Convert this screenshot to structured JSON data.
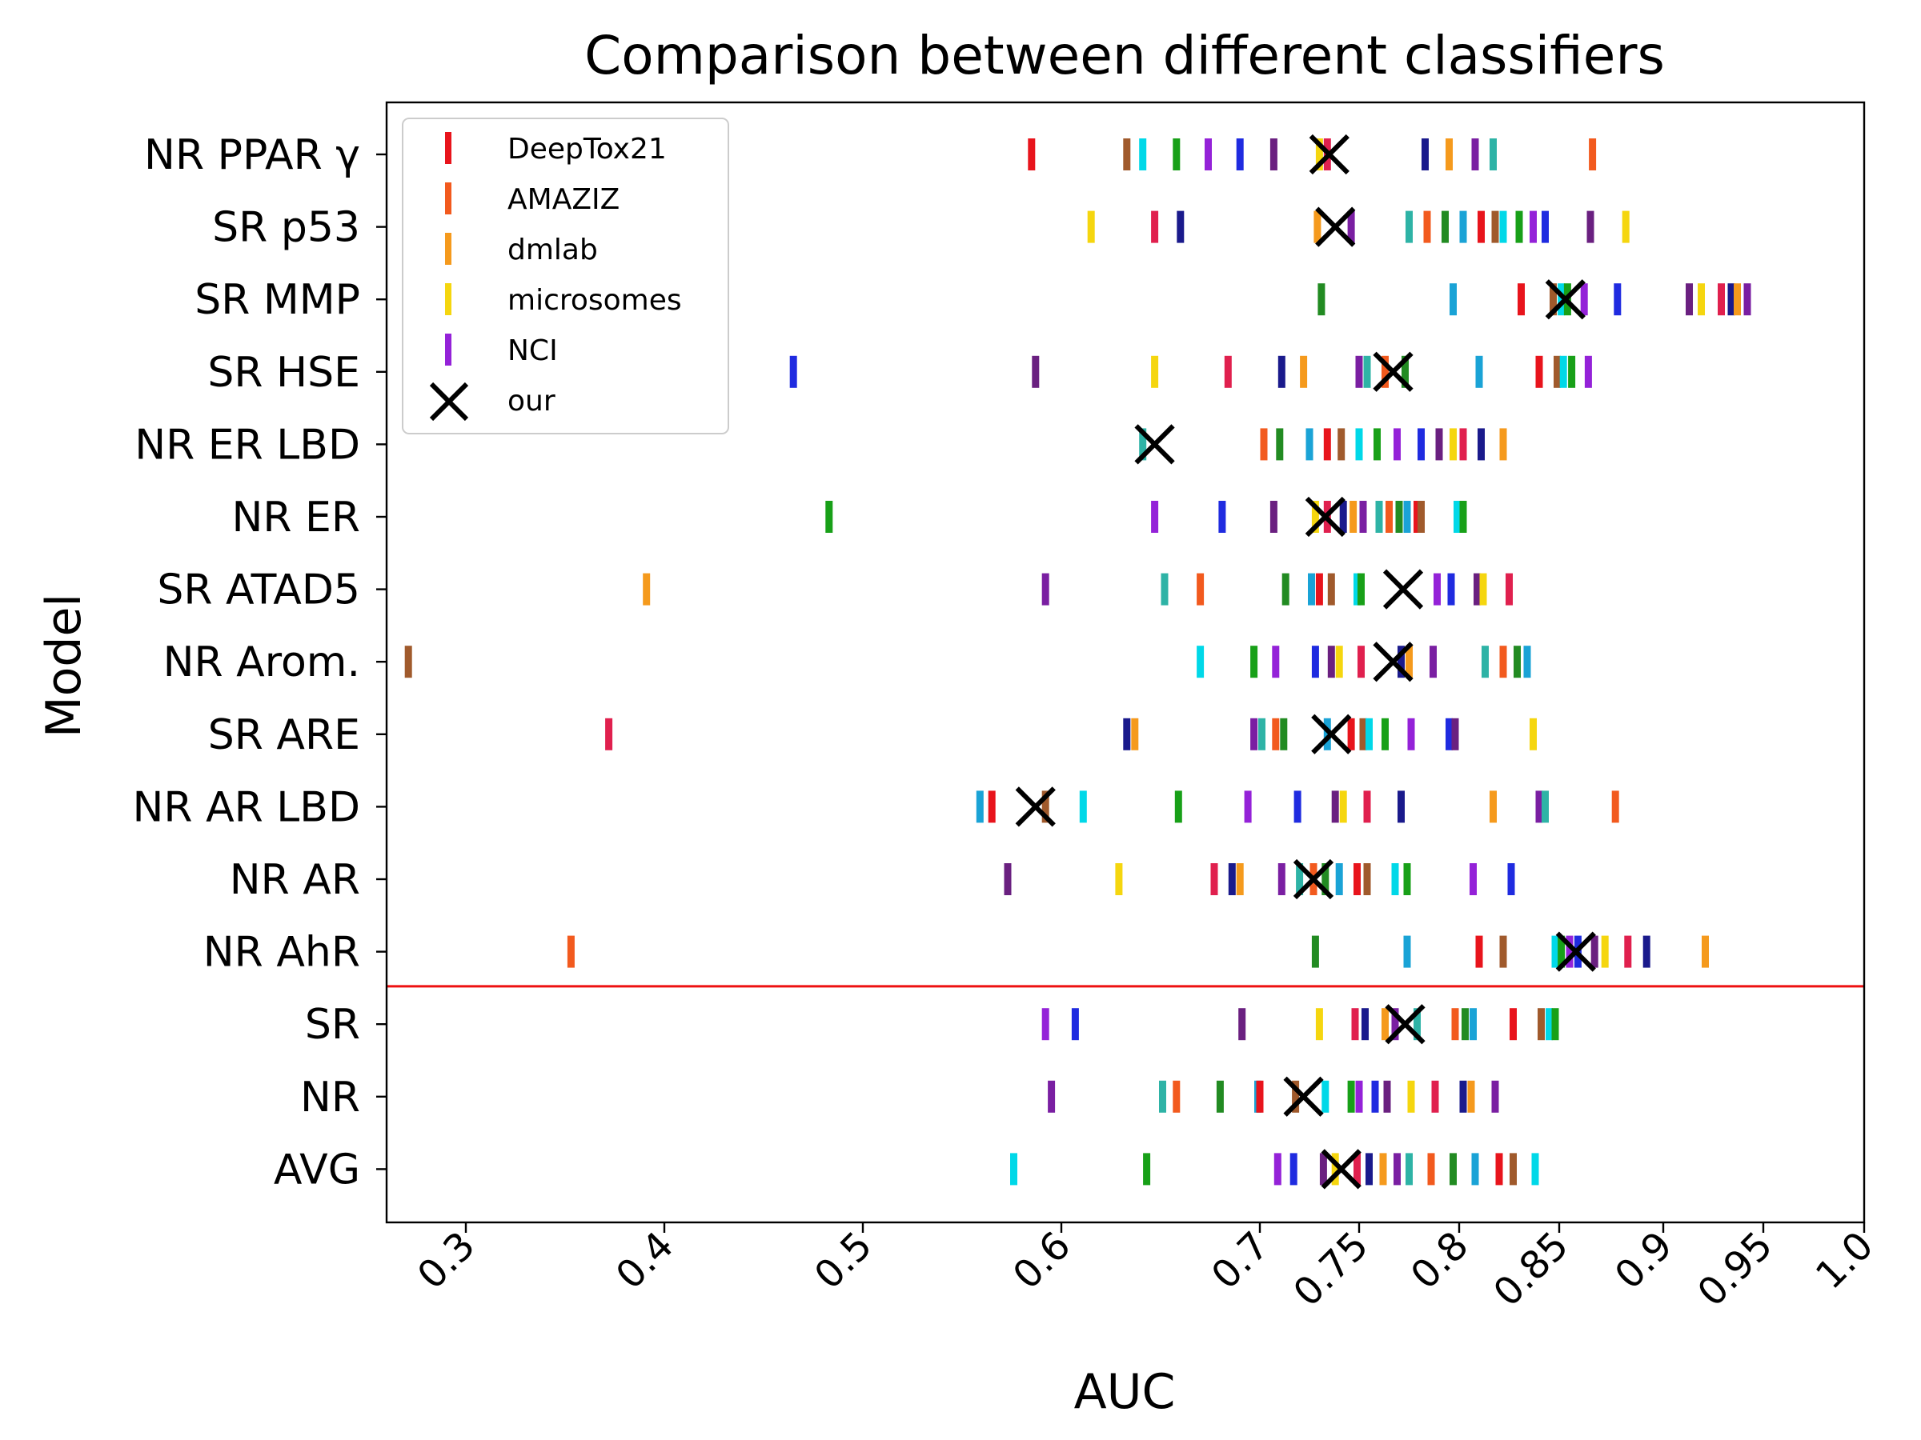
{
  "chart_data": {
    "type": "scatter",
    "title": "Comparison between different classifiers",
    "xlabel": "AUC",
    "ylabel": "Model",
    "x_ticks": [
      {
        "value": 0.3,
        "label": "0.3"
      },
      {
        "value": 0.4,
        "label": "0.4"
      },
      {
        "value": 0.5,
        "label": "0.5"
      },
      {
        "value": 0.6,
        "label": "0.6"
      },
      {
        "value": 0.7,
        "label": "0.7"
      },
      {
        "value": 0.75,
        "label": "0.75"
      },
      {
        "value": 0.8,
        "label": "0.8"
      },
      {
        "value": 0.85,
        "label": "0.85"
      },
      {
        "value": 0.9,
        "label": "0.9"
      },
      {
        "value": 0.95,
        "label": "0.95"
      },
      {
        "value": 1.0,
        "label": "1.0"
      }
    ],
    "x_scale": "nonlinear (piecewise; 0.3–0.7 compressed, 0.7–1.0 expanded)",
    "xlim": [
      0.26,
      1.0
    ],
    "grid": false,
    "legend_position": "top-left",
    "separator_color": "#ee1111",
    "categories": [
      "NR PPAR γ",
      "SR p53",
      "SR MMP",
      "SR HSE",
      "NR ER LBD",
      "NR ER",
      "SR ATAD5",
      "NR Arom.",
      "SR ARE",
      "NR AR LBD",
      "NR AR",
      "NR AhR",
      "SR",
      "NR",
      "AVG"
    ],
    "separator_after": "NR AhR",
    "legend": [
      {
        "name": "DeepTox21",
        "color": "#e8141c",
        "marker": "bar"
      },
      {
        "name": "AMAZIZ",
        "color": "#f25a1e",
        "marker": "bar"
      },
      {
        "name": "dmlab",
        "color": "#f59a1d",
        "marker": "bar"
      },
      {
        "name": "microsomes",
        "color": "#f5d60f",
        "marker": "bar"
      },
      {
        "name": "NCI",
        "color": "#9422d8",
        "marker": "bar"
      },
      {
        "name": "our",
        "color": "#000000",
        "marker": "x"
      }
    ],
    "other_colors": [
      "#a05a2c",
      "#228b22",
      "#7a1fa2",
      "#e0204e",
      "#1f2be0",
      "#00d8e8",
      "#1aa3d6",
      "#2eb3a6",
      "#1a1a8c",
      "#6a2080",
      "#18a018"
    ],
    "rows": [
      {
        "model": "NR PPAR γ",
        "our": 0.735,
        "x": [
          0.585,
          0.633,
          0.641,
          0.658,
          0.674,
          0.69,
          0.707,
          0.73,
          0.734,
          0.783,
          0.795,
          0.808,
          0.817,
          0.866
        ]
      },
      {
        "model": "SR p53",
        "our": 0.738,
        "x": [
          0.615,
          0.647,
          0.66,
          0.729,
          0.746,
          0.775,
          0.784,
          0.793,
          0.802,
          0.811,
          0.818,
          0.822,
          0.83,
          0.837,
          0.843,
          0.865,
          0.882
        ]
      },
      {
        "model": "SR MMP",
        "our": 0.853,
        "x": [
          0.731,
          0.797,
          0.831,
          0.847,
          0.851,
          0.854,
          0.862,
          0.878,
          0.913,
          0.919,
          0.929,
          0.934,
          0.937,
          0.942
        ]
      },
      {
        "model": "SR HSE",
        "our": 0.767,
        "x": [
          0.465,
          0.587,
          0.647,
          0.684,
          0.711,
          0.722,
          0.75,
          0.754,
          0.763,
          0.773,
          0.81,
          0.84,
          0.849,
          0.852,
          0.856,
          0.864
        ]
      },
      {
        "model": "NR ER LBD",
        "our": 0.647,
        "x": [
          0.641,
          0.702,
          0.71,
          0.725,
          0.734,
          0.741,
          0.75,
          0.759,
          0.769,
          0.781,
          0.79,
          0.797,
          0.802,
          0.811,
          0.822
        ]
      },
      {
        "model": "NR ER",
        "our": 0.733,
        "x": [
          0.483,
          0.647,
          0.681,
          0.707,
          0.728,
          0.734,
          0.742,
          0.747,
          0.752,
          0.76,
          0.765,
          0.77,
          0.774,
          0.779,
          0.781,
          0.799,
          0.802
        ]
      },
      {
        "model": "SR ATAD5",
        "our": 0.772,
        "x": [
          0.391,
          0.592,
          0.652,
          0.67,
          0.713,
          0.726,
          0.73,
          0.736,
          0.749,
          0.751,
          0.789,
          0.796,
          0.809,
          0.812,
          0.825
        ]
      },
      {
        "model": "NR Arom.",
        "our": 0.767,
        "x": [
          0.271,
          0.67,
          0.697,
          0.708,
          0.728,
          0.736,
          0.74,
          0.751,
          0.771,
          0.775,
          0.787,
          0.813,
          0.822,
          0.829,
          0.834
        ]
      },
      {
        "model": "SR ARE",
        "our": 0.736,
        "x": [
          0.372,
          0.633,
          0.637,
          0.697,
          0.701,
          0.708,
          0.712,
          0.734,
          0.746,
          0.752,
          0.755,
          0.763,
          0.776,
          0.795,
          0.798,
          0.837
        ]
      },
      {
        "model": "NR AR LBD",
        "our": 0.587,
        "x": [
          0.559,
          0.565,
          0.592,
          0.611,
          0.659,
          0.694,
          0.719,
          0.738,
          0.742,
          0.754,
          0.771,
          0.817,
          0.84,
          0.843,
          0.877
        ]
      },
      {
        "model": "NR AR",
        "our": 0.727,
        "x": [
          0.573,
          0.629,
          0.677,
          0.686,
          0.69,
          0.711,
          0.72,
          0.727,
          0.733,
          0.74,
          0.749,
          0.754,
          0.768,
          0.774,
          0.807,
          0.826
        ]
      },
      {
        "model": "NR AhR",
        "our": 0.858,
        "x": [
          0.353,
          0.728,
          0.774,
          0.81,
          0.822,
          0.848,
          0.851,
          0.855,
          0.859,
          0.867,
          0.872,
          0.883,
          0.892,
          0.921
        ]
      },
      {
        "model": "SR",
        "our": 0.773,
        "x": [
          0.592,
          0.607,
          0.691,
          0.73,
          0.748,
          0.753,
          0.763,
          0.768,
          0.779,
          0.798,
          0.803,
          0.807,
          0.827,
          0.841,
          0.845,
          0.848
        ]
      },
      {
        "model": "NR",
        "our": 0.722,
        "x": [
          0.595,
          0.651,
          0.658,
          0.68,
          0.699,
          0.7,
          0.718,
          0.733,
          0.746,
          0.75,
          0.758,
          0.764,
          0.776,
          0.788,
          0.802,
          0.806,
          0.818
        ]
      },
      {
        "model": "AVG",
        "our": 0.741,
        "x": [
          0.576,
          0.643,
          0.709,
          0.717,
          0.732,
          0.738,
          0.749,
          0.755,
          0.762,
          0.769,
          0.775,
          0.786,
          0.797,
          0.808,
          0.82,
          0.827,
          0.838
        ]
      }
    ]
  }
}
